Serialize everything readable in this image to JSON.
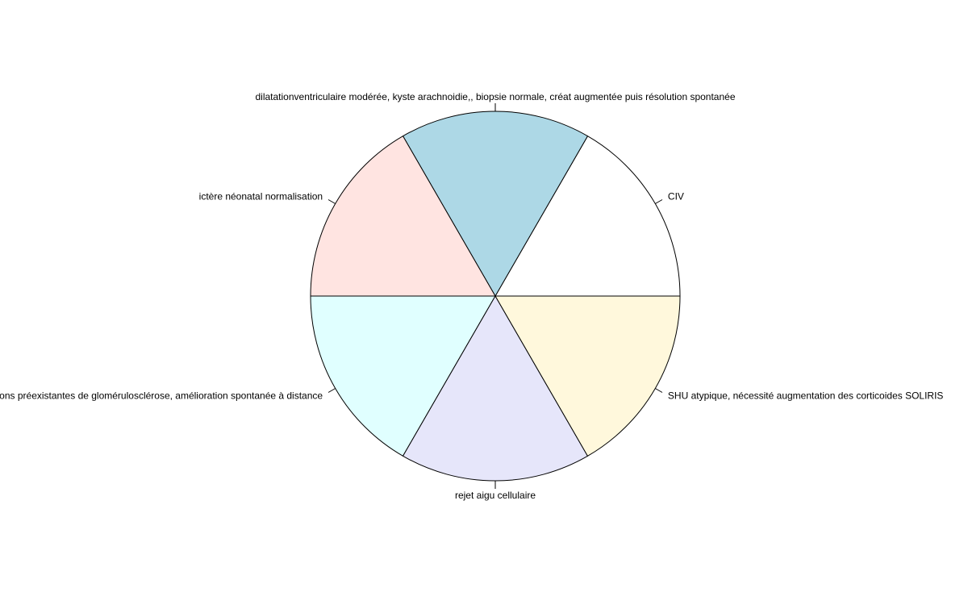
{
  "chart_data": {
    "type": "pie",
    "title": "",
    "labels": [
      "CIV",
      "dilatationventriculaire modérée, kyste arachnoidie,,  biopsie normale, créat augmentée puis résolution spontanée",
      "ictère néonatal normalisation",
      "lésions préexistantes de glomérulosclérose, amélioration spontanée à distance",
      "rejet aigu cellulaire",
      "SHU atypique, nécessité augmentation des corticoides SOLIRIS"
    ],
    "values": [
      1,
      1,
      1,
      1,
      1,
      1
    ],
    "colors": [
      "#FFFFFF",
      "#ADD8E6",
      "#FFE4E1",
      "#E0FFFF",
      "#E6E6FA",
      "#FFF8DC"
    ],
    "start_angle_deg": 0,
    "direction": "counterclockwise",
    "border_color": "#000000",
    "label_color": "#000000"
  }
}
